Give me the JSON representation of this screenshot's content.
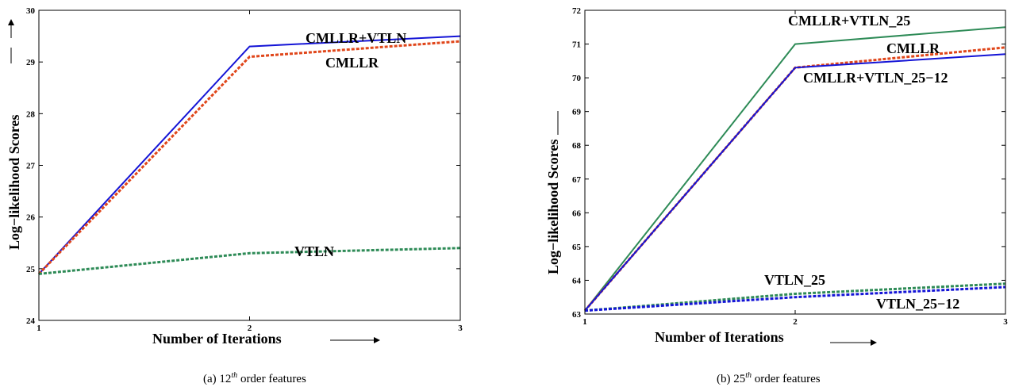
{
  "chart_data": [
    {
      "type": "line",
      "caption_prefix": "(a) 12",
      "caption_sup": "th",
      "caption_suffix": " order features",
      "xlabel": "Number of Iterations",
      "ylabel": "Log−likelihood Scores",
      "xlim": [
        1,
        3
      ],
      "ylim": [
        24,
        30
      ],
      "xticks": [
        "1",
        "2",
        "3"
      ],
      "yticks": [
        "24",
        "25",
        "26",
        "27",
        "28",
        "29",
        "30"
      ],
      "x": [
        1,
        2,
        3
      ],
      "series": [
        {
          "name": "CMLLR+VTLN",
          "values": [
            24.9,
            29.3,
            29.5
          ],
          "color": "#1414d6",
          "style": "solid"
        },
        {
          "name": "CMLLR",
          "values": [
            24.9,
            29.1,
            29.4
          ],
          "color": "#e0461a",
          "style": "dotted"
        },
        {
          "name": "VTLN",
          "values": [
            24.9,
            25.3,
            25.4
          ],
          "color": "#2e8b57",
          "style": "dotted"
        }
      ],
      "annotations": [
        "CMLLR+VTLN",
        "CMLLR",
        "VTLN"
      ]
    },
    {
      "type": "line",
      "caption_prefix": "(b) 25",
      "caption_sup": "th",
      "caption_suffix": " order features",
      "xlabel": "Number of Iterations",
      "ylabel": "Log−likelihood Scores",
      "xlim": [
        1,
        3
      ],
      "ylim": [
        63,
        72
      ],
      "xticks": [
        "1",
        "2",
        "3"
      ],
      "yticks": [
        "63",
        "64",
        "65",
        "66",
        "67",
        "68",
        "69",
        "70",
        "71",
        "72"
      ],
      "x": [
        1,
        2,
        3
      ],
      "series": [
        {
          "name": "CMLLR+VTLN_25",
          "values": [
            63.1,
            71.0,
            71.5
          ],
          "color": "#2e8b57",
          "style": "solid"
        },
        {
          "name": "CMLLR",
          "values": [
            63.1,
            70.3,
            70.9
          ],
          "color": "#e0461a",
          "style": "dotted"
        },
        {
          "name": "CMLLR+VTLN_25−12",
          "values": [
            63.1,
            70.3,
            70.7
          ],
          "color": "#1414d6",
          "style": "solid"
        },
        {
          "name": "VTLN_25",
          "values": [
            63.1,
            63.6,
            63.9
          ],
          "color": "#2e8b57",
          "style": "dotted"
        },
        {
          "name": "VTLN_25−12",
          "values": [
            63.1,
            63.5,
            63.8
          ],
          "color": "#1414d6",
          "style": "dotted"
        }
      ],
      "annotations": [
        "CMLLR+VTLN_25",
        "CMLLR",
        "CMLLR+VTLN_25−12",
        "VTLN_25",
        "VTLN_25−12"
      ]
    }
  ]
}
